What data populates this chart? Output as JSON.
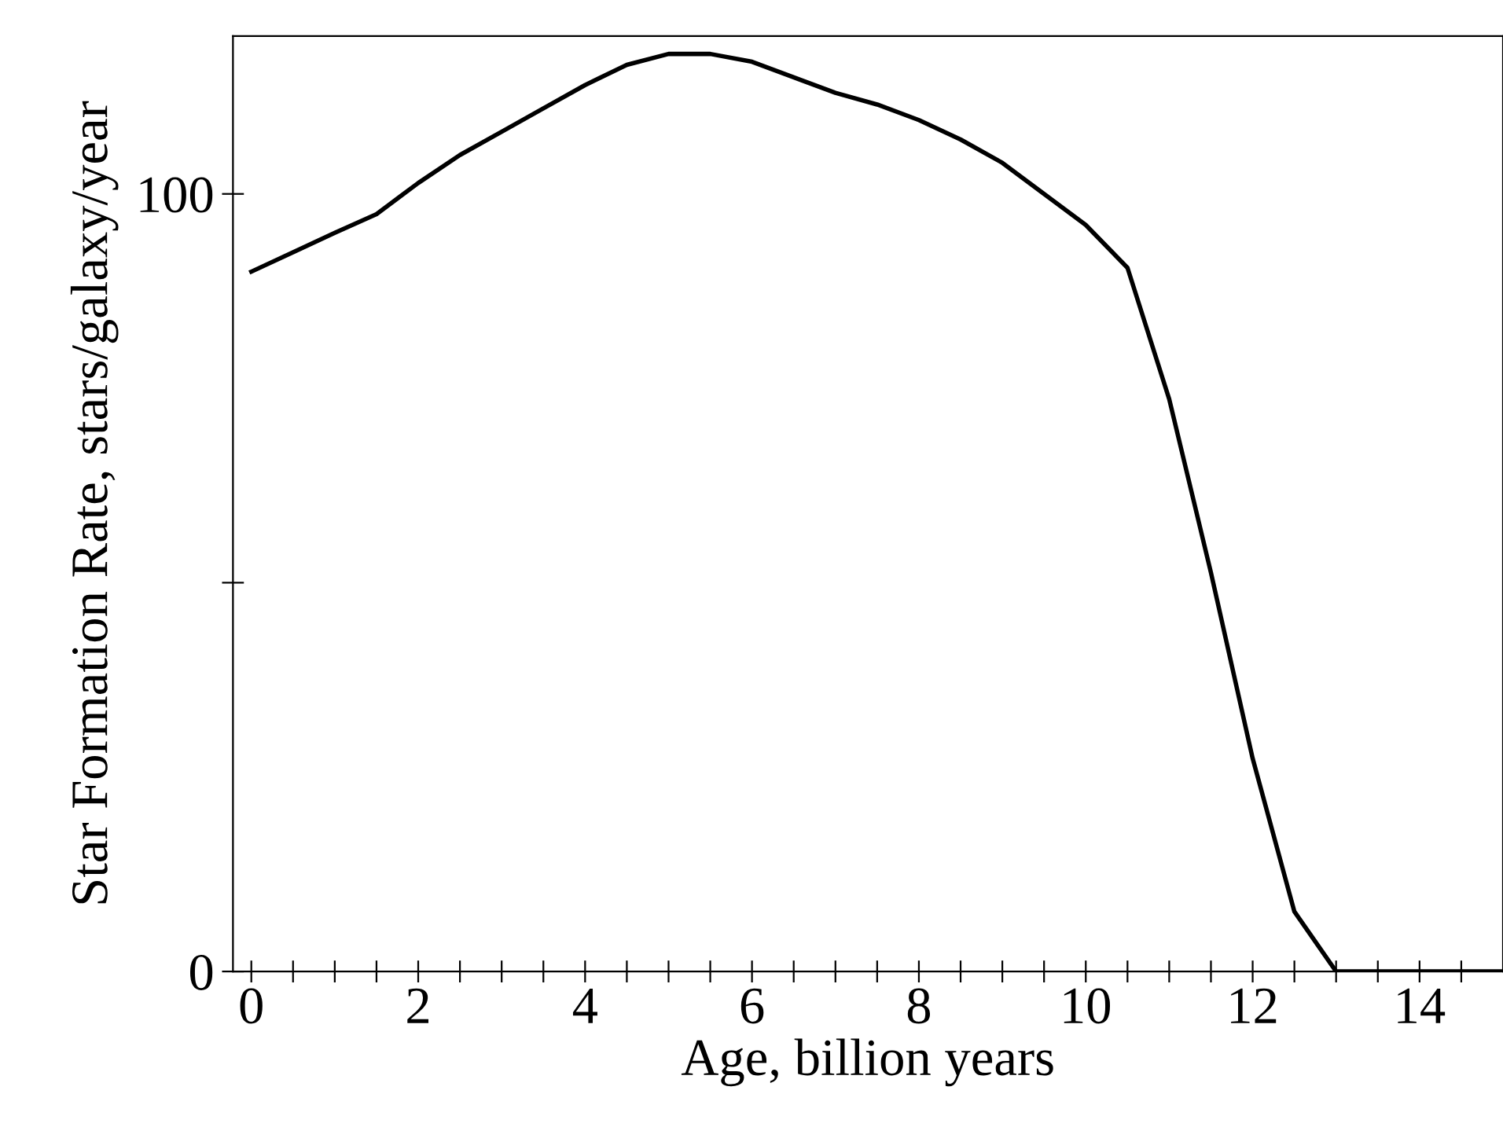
{
  "chart_data": {
    "type": "line",
    "xlabel": "Age, billion years",
    "ylabel": "Star Formation Rate, stars/galaxy/year",
    "x": [
      0,
      0.5,
      1,
      1.5,
      2,
      2.5,
      3,
      3.5,
      4,
      4.5,
      5,
      5.5,
      6,
      6.5,
      7,
      7.5,
      8,
      8.5,
      9,
      9.5,
      10,
      10.5,
      11,
      11.5,
      12,
      12.5,
      13,
      13.5,
      14,
      14.5,
      15
    ],
    "series": [
      {
        "color": "#000000",
        "values": [
          90,
          92.5,
          95,
          97.4,
          101.4,
          105,
          108,
          111,
          114,
          116.6,
          118,
          118,
          117,
          115,
          113,
          111.5,
          109.5,
          107,
          104,
          100,
          96,
          90.5,
          73.6,
          51.3,
          27.4,
          7.7,
          0,
          0,
          0,
          0,
          0
        ]
      }
    ],
    "xlim": [
      -0.22,
      15
    ],
    "ylim": [
      0,
      120.3
    ],
    "xticks": [
      0,
      {
        "value": 0.5,
        "label": null
      },
      2,
      {
        "value": 1,
        "label": null
      },
      {
        "value": 1.5,
        "label": null
      },
      {
        "value": 2.5,
        "label": null
      },
      {
        "value": 3,
        "label": null
      },
      {
        "value": 3.5,
        "label": null
      },
      4,
      {
        "value": 4.5,
        "label": null
      },
      {
        "value": 5,
        "label": null
      },
      {
        "value": 5.5,
        "label": null
      },
      6,
      {
        "value": 6.5,
        "label": null
      },
      {
        "value": 7,
        "label": null
      },
      {
        "value": 7.5,
        "label": null
      },
      8,
      {
        "value": 8.5,
        "label": null
      },
      {
        "value": 9,
        "label": null
      },
      {
        "value": 9.5,
        "label": null
      },
      10,
      {
        "value": 10.5,
        "label": null
      },
      {
        "value": 11,
        "label": null
      },
      {
        "value": 11.5,
        "label": null
      },
      12,
      {
        "value": 12.5,
        "label": null
      },
      {
        "value": 13,
        "label": null
      },
      {
        "value": 13.5,
        "label": null
      },
      14,
      {
        "value": 14.5,
        "label": null
      }
    ],
    "yticks": [
      0,
      {
        "value": 50,
        "label": null
      },
      100
    ],
    "grid": false,
    "legend": false,
    "marker": "none",
    "line_style": "solid"
  }
}
